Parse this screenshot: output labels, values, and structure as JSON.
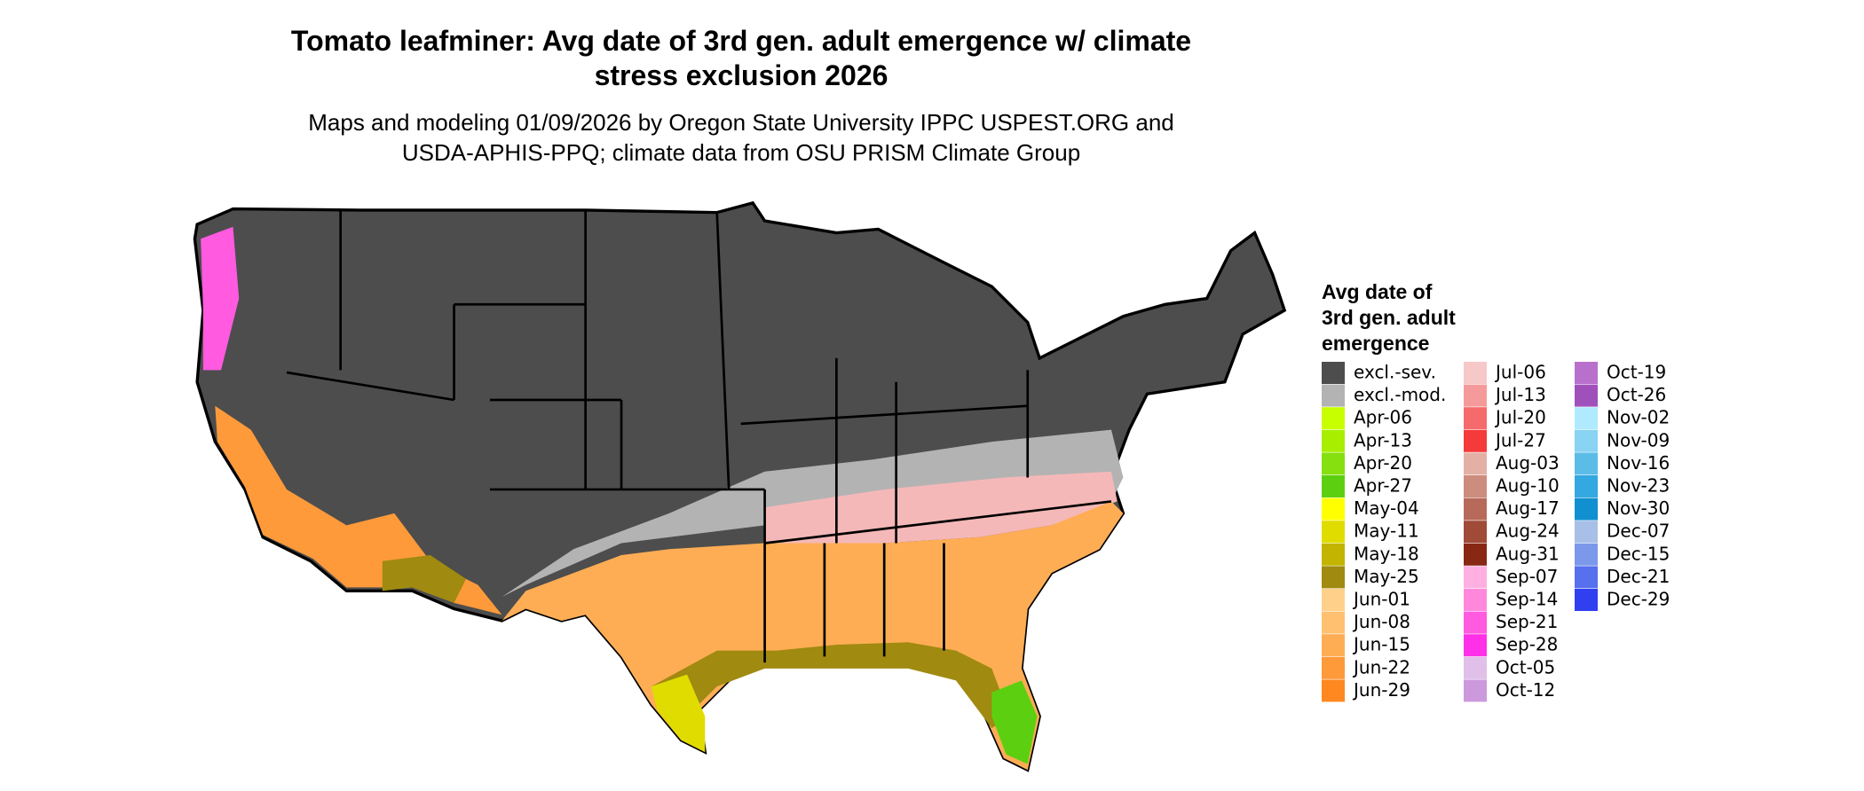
{
  "header": {
    "title_lines": [
      "Tomato leafminer: Avg date of 3rd gen. adult emergence w/ climate",
      "stress exclusion 2026"
    ],
    "subtitle_lines": [
      "Maps and modeling 01/09/2026 by Oregon State University IPPC USPEST.ORG and",
      "USDA-APHIS-PPQ; climate data from OSU PRISM Climate Group"
    ]
  },
  "legend": {
    "title_lines": [
      "Avg date of",
      "3rd gen. adult",
      "emergence"
    ],
    "items": [
      {
        "label": "excl.-sev.",
        "color": "#4d4d4d"
      },
      {
        "label": "excl.-mod.",
        "color": "#b3b3b3"
      },
      {
        "label": "Apr-06",
        "color": "#c8ff00"
      },
      {
        "label": "Apr-13",
        "color": "#a8ee00"
      },
      {
        "label": "Apr-20",
        "color": "#86e010"
      },
      {
        "label": "Apr-27",
        "color": "#5cd010"
      },
      {
        "label": "May-04",
        "color": "#ffff00"
      },
      {
        "label": "May-11",
        "color": "#e0dc00"
      },
      {
        "label": "May-18",
        "color": "#c2b400"
      },
      {
        "label": "May-25",
        "color": "#a08a10"
      },
      {
        "label": "Jun-01",
        "color": "#ffd08a"
      },
      {
        "label": "Jun-08",
        "color": "#ffc070"
      },
      {
        "label": "Jun-15",
        "color": "#ffad55"
      },
      {
        "label": "Jun-22",
        "color": "#ff9a3a"
      },
      {
        "label": "Jun-29",
        "color": "#ff8820"
      },
      {
        "label": "Jul-06",
        "color": "#f7c8c8"
      },
      {
        "label": "Jul-13",
        "color": "#f59a9a"
      },
      {
        "label": "Jul-20",
        "color": "#f56a6a"
      },
      {
        "label": "Jul-27",
        "color": "#f53a3a"
      },
      {
        "label": "Aug-03",
        "color": "#e3b0a5"
      },
      {
        "label": "Aug-10",
        "color": "#cc8c7e"
      },
      {
        "label": "Aug-17",
        "color": "#b86a5a"
      },
      {
        "label": "Aug-24",
        "color": "#a04a38"
      },
      {
        "label": "Aug-31",
        "color": "#882814"
      },
      {
        "label": "Sep-07",
        "color": "#ffb0e0"
      },
      {
        "label": "Sep-14",
        "color": "#ff88dd"
      },
      {
        "label": "Sep-21",
        "color": "#ff5ae0"
      },
      {
        "label": "Sep-28",
        "color": "#ff30e8"
      },
      {
        "label": "Oct-05",
        "color": "#e0c0e8"
      },
      {
        "label": "Oct-12",
        "color": "#cc99dd"
      },
      {
        "label": "Oct-19",
        "color": "#b870cc"
      },
      {
        "label": "Oct-26",
        "color": "#a050bb"
      },
      {
        "label": "Nov-02",
        "color": "#b0eaff"
      },
      {
        "label": "Nov-09",
        "color": "#88d4f2"
      },
      {
        "label": "Nov-16",
        "color": "#5cbce8"
      },
      {
        "label": "Nov-23",
        "color": "#34a8e0"
      },
      {
        "label": "Nov-30",
        "color": "#1090d0"
      },
      {
        "label": "Dec-07",
        "color": "#a8c0e8"
      },
      {
        "label": "Dec-15",
        "color": "#7c98ea"
      },
      {
        "label": "Dec-21",
        "color": "#5670ee"
      },
      {
        "label": "Dec-29",
        "color": "#3040f0"
      }
    ]
  }
}
